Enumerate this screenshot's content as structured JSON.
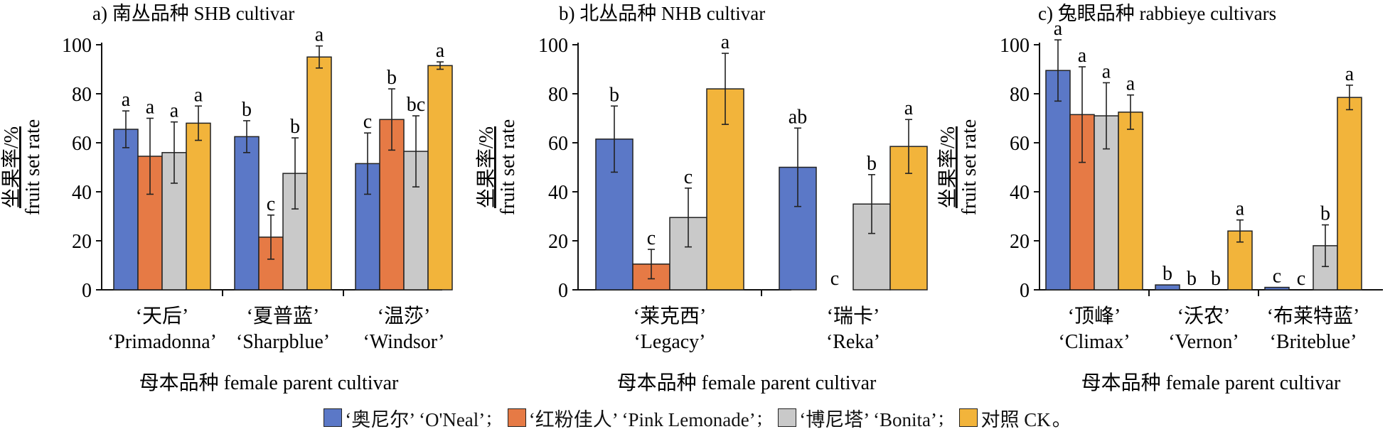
{
  "colors": {
    "oneal": "#5b78c7",
    "pink": "#e67a45",
    "bonita": "#c9c9c9",
    "ck": "#f2b43b"
  },
  "legend": [
    {
      "label": "‘奥尼尔’ ‘O'Neal’",
      "sep": ";",
      "color": "#5b78c7",
      "icon": "blue-square"
    },
    {
      "label": "‘红粉佳人’ ‘Pink Lemonade’",
      "sep": ";",
      "color": "#e67a45",
      "icon": "orange-square"
    },
    {
      "label": "‘博尼塔’ ‘Bonita’",
      "sep": ";",
      "color": "#c9c9c9",
      "icon": "gray-square"
    },
    {
      "label": "对照 CK",
      "sep": "。",
      "color": "#f2b43b",
      "icon": "yellow-square"
    }
  ],
  "chart_data": [
    {
      "type": "bar",
      "title": "a) 南丛品种 SHB cultivar",
      "ylabel": [
        "坐果率/%",
        "fruit set rate"
      ],
      "xlabel": "母本品种 female parent cultivar",
      "ylim": [
        0,
        100
      ],
      "yticks": [
        0,
        20,
        40,
        60,
        80,
        100
      ],
      "categories": [
        {
          "zh": "‘天后’",
          "en": "‘Primadonna’"
        },
        {
          "zh": "‘夏普蓝’",
          "en": "‘Sharpblue’"
        },
        {
          "zh": "‘温莎’",
          "en": "‘Windsor’"
        }
      ],
      "series": [
        {
          "values": [
            65.5,
            62.5,
            51.5
          ],
          "err": [
            7.5,
            6.5,
            12.5
          ],
          "letters": [
            "a",
            "b",
            "c"
          ]
        },
        {
          "values": [
            54.5,
            21.5,
            69.5
          ],
          "err": [
            15.5,
            9.0,
            12.5
          ],
          "letters": [
            "a",
            "c",
            "b"
          ]
        },
        {
          "values": [
            56.0,
            47.5,
            56.5
          ],
          "err": [
            12.5,
            14.5,
            14.5
          ],
          "letters": [
            "a",
            "b",
            "bc"
          ]
        },
        {
          "values": [
            68.0,
            95.0,
            91.5
          ],
          "err": [
            7.0,
            4.5,
            1.5
          ],
          "letters": [
            "a",
            "a",
            "a"
          ]
        }
      ]
    },
    {
      "type": "bar",
      "title": "b) 北丛品种 NHB cultivar",
      "ylabel": [
        "坐果率/%",
        "fruit set rate"
      ],
      "xlabel": "母本品种 female parent cultivar",
      "ylim": [
        0,
        100
      ],
      "yticks": [
        0,
        20,
        40,
        60,
        80,
        100
      ],
      "categories": [
        {
          "zh": "‘莱克西’",
          "en": "‘Legacy’"
        },
        {
          "zh": "‘瑞卡’",
          "en": "‘Reka’"
        }
      ],
      "series": [
        {
          "values": [
            61.5,
            50.0
          ],
          "err": [
            13.5,
            16.0
          ],
          "letters": [
            "b",
            "ab"
          ]
        },
        {
          "values": [
            10.5,
            0
          ],
          "err": [
            6.0,
            0
          ],
          "letters": [
            "c",
            "c"
          ]
        },
        {
          "values": [
            29.5,
            35.0
          ],
          "err": [
            12.0,
            12.0
          ],
          "letters": [
            "c",
            "b"
          ]
        },
        {
          "values": [
            82.0,
            58.5
          ],
          "err": [
            14.5,
            11.0
          ],
          "letters": [
            "a",
            "a"
          ]
        }
      ]
    },
    {
      "type": "bar",
      "title": "c) 兔眼品种 rabbieye cultivars",
      "ylabel": [
        "坐果率/%",
        "fruit set rate"
      ],
      "xlabel": "母本品种 female parent cultivar",
      "ylim": [
        0,
        100
      ],
      "yticks": [
        0,
        20,
        40,
        60,
        80,
        100
      ],
      "categories": [
        {
          "zh": "‘顶峰’",
          "en": "‘Climax’"
        },
        {
          "zh": "‘沃农’",
          "en": "‘Vernon’"
        },
        {
          "zh": "‘布莱特蓝’",
          "en": "‘Briteblue’"
        }
      ],
      "series": [
        {
          "values": [
            89.5,
            2.0,
            1.0
          ],
          "err": [
            12.5,
            0,
            0
          ],
          "letters": [
            "a",
            "b",
            "c"
          ]
        },
        {
          "values": [
            71.5,
            0,
            0
          ],
          "err": [
            19.5,
            0,
            0
          ],
          "letters": [
            "a",
            "b",
            "c"
          ]
        },
        {
          "values": [
            71.0,
            0,
            18.0
          ],
          "err": [
            13.5,
            0,
            8.5
          ],
          "letters": [
            "a",
            "b",
            "b"
          ]
        },
        {
          "values": [
            72.5,
            24.0,
            78.5
          ],
          "err": [
            7.0,
            4.5,
            5.0
          ],
          "letters": [
            "a",
            "a",
            "a"
          ]
        }
      ]
    }
  ]
}
